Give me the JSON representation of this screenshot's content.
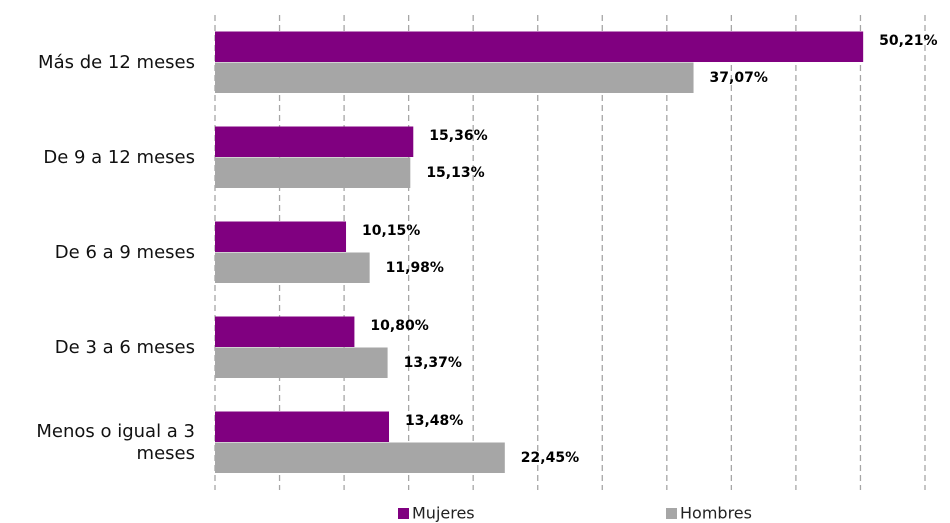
{
  "chart_data": {
    "type": "bar",
    "orientation": "horizontal",
    "categories": [
      "Más de 12 meses",
      "De 9 a 12 meses",
      "De 6 a 9 meses",
      "De 3 a 6 meses",
      "Menos o igual a 3 meses"
    ],
    "series": [
      {
        "name": "Mujeres",
        "color": "#800080",
        "values": [
          50.21,
          15.36,
          10.15,
          10.8,
          13.48
        ],
        "value_labels": [
          "50,21%",
          "15,36%",
          "10,15%",
          "10,80%",
          "13,48%"
        ]
      },
      {
        "name": "Hombres",
        "color": "#a6a6a6",
        "values": [
          37.07,
          15.13,
          11.98,
          13.37,
          22.45
        ],
        "value_labels": [
          "37,07%",
          "15,13%",
          "11,98%",
          "13,37%",
          "22,45%"
        ]
      }
    ],
    "xlim": [
      0,
      55
    ],
    "xticks": [
      0,
      5,
      10,
      15,
      20,
      25,
      30,
      35,
      40,
      45,
      50,
      55
    ],
    "grid": true,
    "legend": "bottom"
  }
}
